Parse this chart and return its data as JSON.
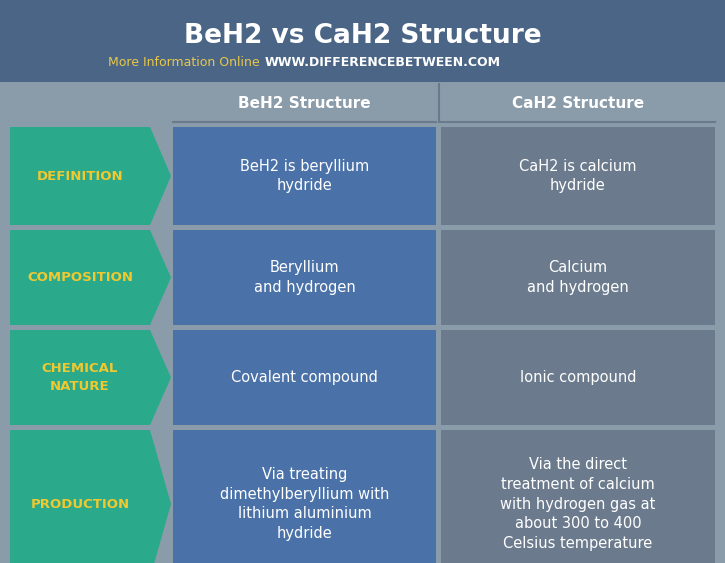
{
  "title": "BeH2 vs CaH2 Structure",
  "subtitle_plain": "More Information Online",
  "subtitle_url": "WWW.DIFFERENCEBETWEEN.COM",
  "col1_header": "BeH2 Structure",
  "col2_header": "CaH2 Structure",
  "rows": [
    {
      "label": "DEFINITION",
      "col1": "BeH2 is beryllium\nhydride",
      "col2": "CaH2 is calcium\nhydride"
    },
    {
      "label": "COMPOSITION",
      "col1": "Beryllium\nand hydrogen",
      "col2": "Calcium\nand hydrogen"
    },
    {
      "label": "CHEMICAL\nNATURE",
      "col1": "Covalent compound",
      "col2": "Ionic compound"
    },
    {
      "label": "PRODUCTION",
      "col1": "Via treating\ndimethylberyllium with\nlithium aluminium\nhydride",
      "col2": "Via the direct\ntreatment of calcium\nwith hydrogen gas at\nabout 300 to 400\nCelsius temperature"
    }
  ],
  "bg_color": "#8a9baa",
  "title_bg_color": "#4a6585",
  "title_color": "#ffffff",
  "subtitle_plain_color": "#e8c84a",
  "subtitle_url_color": "#ffffff",
  "col1_bg": "#4a72a8",
  "col2_bg": "#6b7b8d",
  "label_bg": "#2aaa8a",
  "label_color": "#f0c830",
  "cell_text_color": "#ffffff",
  "header_text_color": "#ffffff",
  "col_header_bg": "#8a9baa"
}
